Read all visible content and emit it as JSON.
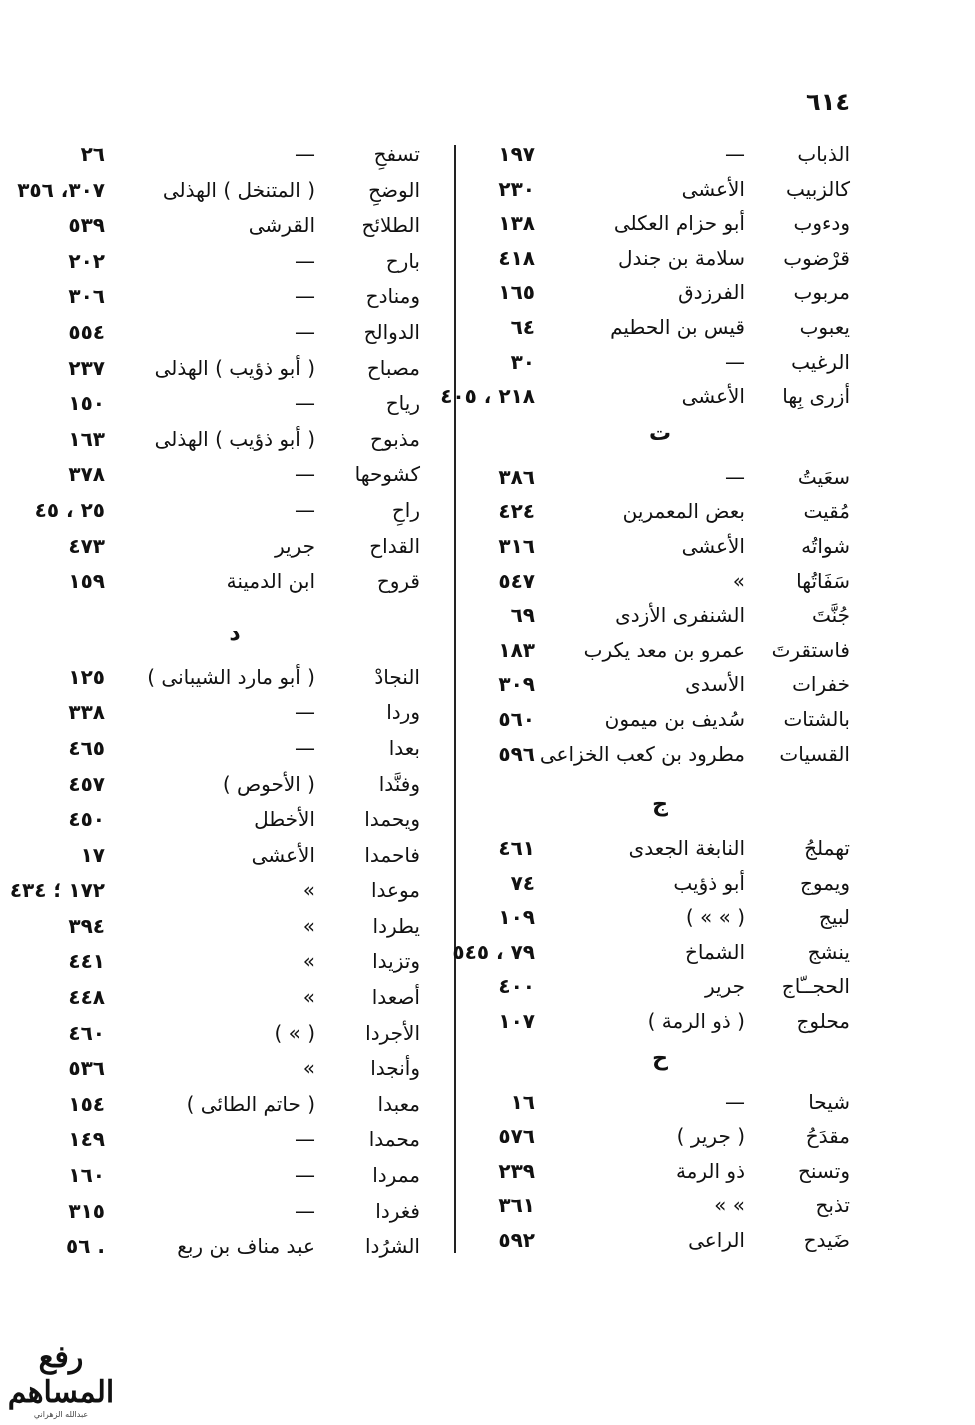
{
  "page_number": "٦١٤",
  "right_column": [
    {
      "type": "row",
      "word": "الذباب",
      "poet": "—",
      "pages": "١٩٧"
    },
    {
      "type": "row",
      "word": "كالزبيب",
      "poet": "الأعشى",
      "pages": "٢٣٠"
    },
    {
      "type": "row",
      "word": "ودءوب",
      "poet": "أبو حزام العكلى",
      "pages": "١٣٨"
    },
    {
      "type": "row",
      "word": "قرْضوب",
      "poet": "سلامة بن جندل",
      "pages": "٤١٨"
    },
    {
      "type": "row",
      "word": "مربوب",
      "poet": "الفرزدق",
      "pages": "١٦٥"
    },
    {
      "type": "row",
      "word": "يعبوب",
      "poet": "قيس بن الحطيم",
      "pages": "٦٤"
    },
    {
      "type": "row",
      "word": "الرغيب",
      "poet": "—",
      "pages": "٣٠"
    },
    {
      "type": "row",
      "word": "أزرى بِها",
      "poet": "الأعشى",
      "pages": "٢١٨ ، ٤٠٥"
    },
    {
      "type": "header",
      "letter": "ت"
    },
    {
      "type": "row",
      "word": "سعَيتُ",
      "poet": "—",
      "pages": "٣٨٦"
    },
    {
      "type": "row",
      "word": "مُقيت",
      "poet": "بعض المعمرين",
      "pages": "٤٢٤"
    },
    {
      "type": "row",
      "word": "شواتُه",
      "poet": "الأعشى",
      "pages": "٣١٦"
    },
    {
      "type": "row",
      "word": "سَفَاتُها",
      "poet": "»",
      "pages": "٥٤٧"
    },
    {
      "type": "row",
      "word": "جُنَّتَ",
      "poet": "الشنفرى الأزدى",
      "pages": "٦٩"
    },
    {
      "type": "row",
      "word": "فاستقرتَ",
      "poet": "عمرو بن معد يكرب",
      "pages": "١٨٣"
    },
    {
      "type": "row",
      "word": "خفرات",
      "poet": "الأسدى",
      "pages": "٣٠٩"
    },
    {
      "type": "row",
      "word": "بالشتات",
      "poet": "سُديف بن ميمون",
      "pages": "٥٦٠"
    },
    {
      "type": "row",
      "word": "القسيات",
      "poet": "مطرود بن كعب الخزاعى",
      "pages": "٥٩٦"
    },
    {
      "type": "gap"
    },
    {
      "type": "header",
      "letter": "ج"
    },
    {
      "type": "row",
      "word": "تهملجُ",
      "poet": "النابغة الجعدى",
      "pages": "٤٦١"
    },
    {
      "type": "row",
      "word": "ويموج",
      "poet": "أبو ذؤيب",
      "pages": "٧٤"
    },
    {
      "type": "row",
      "word": "لبيج",
      "poet": "( »  » )",
      "pages": "١٠٩"
    },
    {
      "type": "row",
      "word": "ينشج",
      "poet": "الشماخ",
      "pages": "٧٩ ، ٥٤٥"
    },
    {
      "type": "row",
      "word": "الحجــّاج",
      "poet": "جرير",
      "pages": "٤٠٠"
    },
    {
      "type": "row",
      "word": "محلوج",
      "poet": "( ذو الرمة )",
      "pages": "١٠٧"
    },
    {
      "type": "header",
      "letter": "ح"
    },
    {
      "type": "row",
      "word": "شيحا",
      "poet": "—",
      "pages": "١٦"
    },
    {
      "type": "row",
      "word": "مقدَحُ",
      "poet": "( جرير )",
      "pages": "٥٧٦"
    },
    {
      "type": "row",
      "word": "وتسنح",
      "poet": "ذو الرمة",
      "pages": "٢٣٩"
    },
    {
      "type": "row",
      "word": "تذبح",
      "poet": "»  »",
      "pages": "٣٦١"
    },
    {
      "type": "row",
      "word": "ضَيدح",
      "poet": "الراعى",
      "pages": "٥٩٢"
    }
  ],
  "left_column": [
    {
      "type": "row",
      "word": "تسفحِ",
      "poet": "—",
      "pages": "٢٦"
    },
    {
      "type": "row",
      "word": "الوضحِ",
      "poet": "( المتنخل ) الهذلى",
      "pages": "٣٠٧، ٣٥٦"
    },
    {
      "type": "row",
      "word": "الطلائح",
      "poet": "القرشى",
      "pages": "٥٣٩"
    },
    {
      "type": "row",
      "word": "بارح",
      "poet": "—",
      "pages": "٢٠٢"
    },
    {
      "type": "row",
      "word": "ومنادح",
      "poet": "—",
      "pages": "٣٠٦"
    },
    {
      "type": "row",
      "word": "الدوالح",
      "poet": "—",
      "pages": "٥٥٤"
    },
    {
      "type": "row",
      "word": "مصباح",
      "poet": "( أبو ذؤيب ) الهذلى",
      "pages": "٢٣٧"
    },
    {
      "type": "row",
      "word": "رياح",
      "poet": "—",
      "pages": "١٥٠"
    },
    {
      "type": "row",
      "word": "مذبوح",
      "poet": "( أبو ذؤيب ) الهذلى",
      "pages": "١٦٣"
    },
    {
      "type": "row",
      "word": "كشوحها",
      "poet": "—",
      "pages": "٣٧٨"
    },
    {
      "type": "row",
      "word": "راحِ",
      "poet": "—",
      "pages": "٢٥ ، ٤٥"
    },
    {
      "type": "row",
      "word": "القداح",
      "poet": "جرير",
      "pages": "٤٧٣"
    },
    {
      "type": "row",
      "word": "قروح",
      "poet": "ابن الدمينة",
      "pages": "١٥٩"
    },
    {
      "type": "gap"
    },
    {
      "type": "header",
      "letter": "د"
    },
    {
      "type": "row",
      "word": "النجادْ",
      "poet": "( أبو مارد الشيبانى )",
      "pages": "١٢٥"
    },
    {
      "type": "row",
      "word": "وردا",
      "poet": "—",
      "pages": "٣٣٨"
    },
    {
      "type": "row",
      "word": "بعدا",
      "poet": "—",
      "pages": "٤٦٥"
    },
    {
      "type": "row",
      "word": "وفنَّدا",
      "poet": "( الأحوص )",
      "pages": "٤٥٧"
    },
    {
      "type": "row",
      "word": "ويحمدا",
      "poet": "الأخطل",
      "pages": "٤٥٠"
    },
    {
      "type": "row",
      "word": "فاحمدا",
      "poet": "الأعشى",
      "pages": "١٧"
    },
    {
      "type": "row",
      "word": "موعدا",
      "poet": "»",
      "pages": "١٧٢ ؛ ٤٣٤"
    },
    {
      "type": "row",
      "word": "يطردا",
      "poet": "»",
      "pages": "٣٩٤"
    },
    {
      "type": "row",
      "word": "وتزيدا",
      "poet": "»",
      "pages": "٤٤١"
    },
    {
      "type": "row",
      "word": "أصعدا",
      "poet": "»",
      "pages": "٤٤٨"
    },
    {
      "type": "row",
      "word": "الأجردا",
      "poet": "( » )",
      "pages": "٤٦٠"
    },
    {
      "type": "row",
      "word": "وأنجدا",
      "poet": "»",
      "pages": "٥٣٦"
    },
    {
      "type": "row",
      "word": "معبدا",
      "poet": "( حاتم الطائى )",
      "pages": "١٥٤"
    },
    {
      "type": "row",
      "word": "محمدا",
      "poet": "—",
      "pages": "١٤٩"
    },
    {
      "type": "row",
      "word": "ممردا",
      "poet": "—",
      "pages": "١٦٠"
    },
    {
      "type": "row",
      "word": "فغردا",
      "poet": "—",
      "pages": "٣١٥"
    },
    {
      "type": "row",
      "word": "الشرُدا",
      "poet": "عبد مناف بن ربع",
      "pages": ". ٥٦"
    }
  ],
  "watermark": {
    "text": "رفع المساهم",
    "subtext": "عبدالله الزهراني"
  }
}
